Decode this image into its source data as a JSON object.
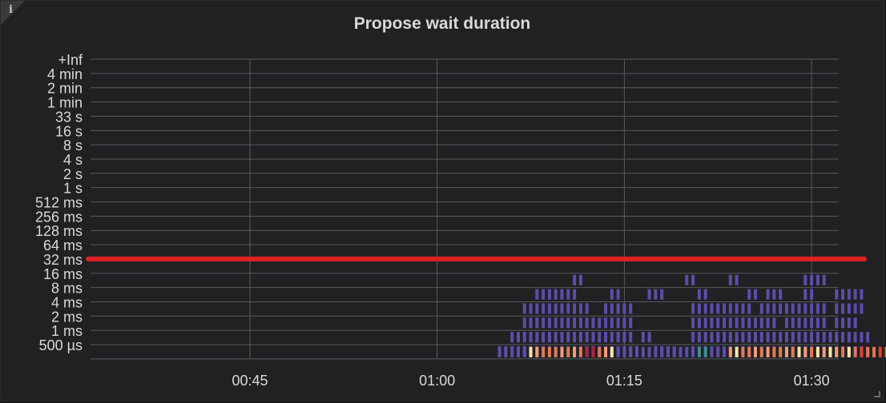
{
  "panel": {
    "title": "Propose wait duration",
    "info_icon": "info-icon",
    "info_glyph": "i"
  },
  "chart_data": {
    "type": "heatmap",
    "title": "Propose wait duration",
    "y_buckets": [
      "500 µs",
      "1 ms",
      "2 ms",
      "4 ms",
      "8 ms",
      "16 ms",
      "32 ms",
      "64 ms",
      "128 ms",
      "256 ms",
      "512 ms",
      "1 s",
      "2 s",
      "4 s",
      "8 s",
      "16 s",
      "33 s",
      "1 min",
      "2 min",
      "4 min",
      "+Inf"
    ],
    "x_ticks": [
      "00:45",
      "01:00",
      "01:15",
      "01:30"
    ],
    "x_range": [
      "00:32:10",
      "01:33:35"
    ],
    "bucket_minutes": 0.5,
    "colors": {
      "low": "#5b4ea8",
      "teal": "#3d8b95",
      "orange": "#e07a50",
      "salmon": "#f59a7c",
      "pale": "#fde4a8",
      "crimson": "#b0243e",
      "red": "#e0422c",
      "threshold": "#e02020",
      "grid": "#5a5a5e"
    },
    "rows": [
      {
        "bucket": "16 ms",
        "cells": [
          [
            71,
            71.5
          ],
          [
            80,
            80.5
          ],
          [
            83.5,
            84
          ],
          [
            89.5,
            90
          ],
          [
            90.5,
            91
          ]
        ]
      },
      {
        "bucket": "8 ms",
        "cells": [
          [
            68,
            71
          ],
          [
            74,
            74.5
          ],
          [
            77,
            78
          ],
          [
            81,
            81.5
          ],
          [
            85,
            85.5
          ],
          [
            86.5,
            87.5
          ],
          [
            89.5,
            90
          ],
          [
            92,
            92.5
          ],
          [
            93,
            94
          ]
        ]
      },
      {
        "bucket": "4 ms",
        "cells": [
          [
            67,
            72
          ],
          [
            73.5,
            75.5
          ],
          [
            80.5,
            85
          ],
          [
            86,
            89
          ],
          [
            89.5,
            91
          ],
          [
            92,
            94
          ]
        ]
      },
      {
        "bucket": "2 ms",
        "cells": [
          [
            67,
            71
          ],
          [
            71.5,
            75.5
          ],
          [
            80.5,
            87
          ],
          [
            88,
            91
          ],
          [
            92,
            93.5
          ]
        ]
      },
      {
        "bucket": "1 ms",
        "cells": [
          [
            66,
            75.5
          ],
          [
            76.5,
            77
          ],
          [
            80.5,
            86
          ],
          [
            86.5,
            94.5
          ]
        ]
      },
      {
        "bucket": "500 µs",
        "cells": [
          [
            65,
            75.5
          ],
          [
            75.5,
            76
          ],
          [
            77.5,
            78
          ],
          [
            78.5,
            79
          ],
          [
            80.5,
            94
          ]
        ]
      },
      {
        "bucket": "+Inf",
        "cells": []
      }
    ],
    "bottom_row": {
      "bucket": "below 500 µs",
      "start_minute": 65,
      "colors": [
        "low",
        "low",
        "low",
        "low",
        "low",
        "pale",
        "salmon",
        "orange",
        "orange",
        "orange",
        "salmon",
        "orange",
        "salmon",
        "orange",
        "crimson",
        "crimson",
        "orange",
        "salmon",
        "pale",
        "low",
        "low",
        "low",
        "low",
        "low",
        "low",
        "low",
        "low",
        "low",
        "low",
        "low",
        "low",
        "low",
        "teal",
        "teal",
        "low",
        "low",
        "low",
        "salmon",
        "pale",
        "orange",
        "orange",
        "salmon",
        "orange",
        "salmon",
        "orange",
        "orange",
        "salmon",
        "orange",
        "pale",
        "salmon",
        "orange",
        "pale",
        "salmon",
        "pale",
        "salmon",
        "orange",
        "pale",
        "orange",
        "red",
        "orange",
        "orange",
        "red",
        "orange",
        "salmon",
        "orange",
        "red",
        "red",
        "pale",
        "low"
      ]
    },
    "threshold_line": {
      "bucket": "32 ms"
    }
  }
}
